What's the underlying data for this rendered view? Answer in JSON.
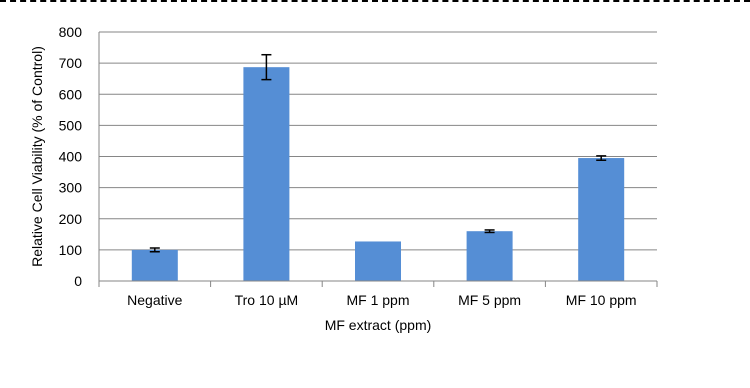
{
  "chart_data": {
    "type": "bar",
    "categories": [
      "Negative",
      "Tro 10 µM",
      "MF 1 ppm",
      "MF 5 ppm",
      "MF 10 ppm"
    ],
    "values": [
      100,
      687,
      127,
      160,
      395
    ],
    "errors": [
      6,
      40,
      0,
      4,
      7
    ],
    "title": "",
    "xlabel": "MF extract (ppm)",
    "ylabel": "Relative Cell Viability  (% of Control)",
    "ylim": [
      0,
      800
    ],
    "yticks": [
      0,
      100,
      200,
      300,
      400,
      500,
      600,
      700,
      800
    ],
    "grid": true,
    "legend": "none",
    "bar_color": "#558ED5",
    "grid_color": "#868686",
    "error_color": "#000000"
  }
}
